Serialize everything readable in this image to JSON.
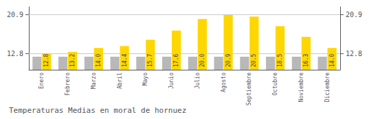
{
  "chart_data": {
    "type": "bar",
    "title": "Temperaturas Medias en moral de hornuez",
    "categories": [
      "Enero",
      "Febrero",
      "Marzo",
      "Abril",
      "Mayo",
      "Junio",
      "Julio",
      "Agosto",
      "Septiembre",
      "Octubre",
      "Noviembre",
      "Diciembre"
    ],
    "series": [
      {
        "color": "#B8B8B8",
        "values": [
          12.2,
          12.2,
          12.2,
          12.2,
          12.2,
          12.2,
          12.2,
          12.2,
          12.2,
          12.2,
          12.2,
          12.2
        ]
      },
      {
        "color": "#FFD700",
        "data_labels": true,
        "values": [
          12.8,
          13.2,
          14.0,
          14.4,
          15.7,
          17.6,
          20.0,
          20.9,
          20.5,
          18.5,
          16.3,
          14.0
        ],
        "value_labels": [
          "12.8",
          "13.2",
          "14.0",
          "14.4",
          "15.7",
          "17.6",
          "20.0",
          "20.9",
          "20.5",
          "18.5",
          "16.3",
          "14.0"
        ]
      }
    ],
    "ylim": [
      9.5,
      22.5
    ],
    "yticks": [
      12.8,
      20.9
    ],
    "y2lim": [
      9.5,
      22.5
    ],
    "y2ticks": [
      12.8,
      20.9
    ],
    "grid": true
  }
}
